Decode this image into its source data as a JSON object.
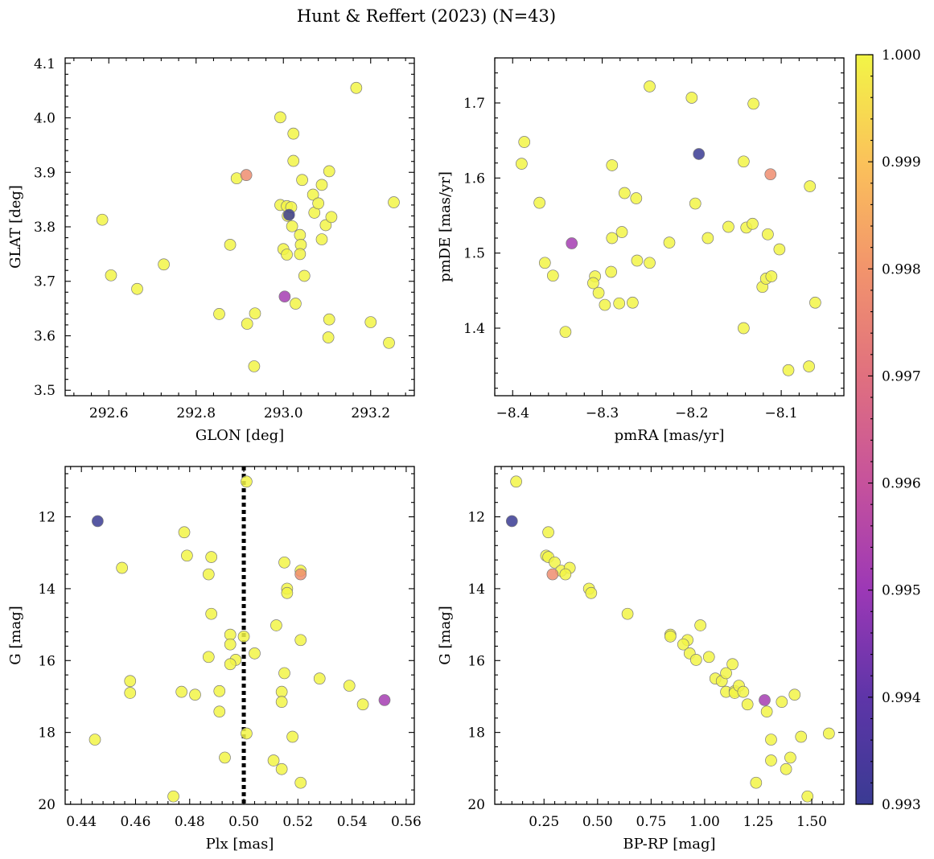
{
  "figure": {
    "title": "Hunt & Reffert (2023) (N=43)"
  },
  "colorbar": {
    "min": 0.993,
    "max": 1.0,
    "ticks": [
      "0.993",
      "0.994",
      "0.995",
      "0.996",
      "0.997",
      "0.998",
      "0.999",
      "1.000"
    ],
    "colormap": "plasma"
  },
  "chart_data": [
    {
      "type": "scatter",
      "panel": "top-left",
      "xlabel": "GLON [deg]",
      "ylabel": "GLAT [deg]",
      "xlim": [
        292.5,
        293.3
      ],
      "ylim": [
        3.49,
        4.11
      ],
      "xticks": [
        292.6,
        292.8,
        293.0,
        293.2
      ],
      "xtick_labels": [
        "292.6",
        "292.8",
        "293.0",
        "293.2"
      ],
      "yticks": [
        3.5,
        3.6,
        3.7,
        3.8,
        3.9,
        4.0,
        4.1
      ],
      "ytick_labels": [
        "3.5",
        "3.6",
        "3.7",
        "3.8",
        "3.9",
        "4.0",
        "4.1"
      ],
      "x_inverted": false,
      "y_inverted": false,
      "points": [
        {
          "x": 292.585,
          "y": 3.813,
          "c": 1.0
        },
        {
          "x": 292.605,
          "y": 3.711,
          "c": 1.0
        },
        {
          "x": 292.665,
          "y": 3.686,
          "c": 1.0
        },
        {
          "x": 292.726,
          "y": 3.731,
          "c": 1.0
        },
        {
          "x": 292.853,
          "y": 3.64,
          "c": 1.0
        },
        {
          "x": 292.878,
          "y": 3.767,
          "c": 1.0
        },
        {
          "x": 292.893,
          "y": 3.889,
          "c": 1.0
        },
        {
          "x": 292.917,
          "y": 3.622,
          "c": 1.0
        },
        {
          "x": 292.935,
          "y": 3.641,
          "c": 1.0
        },
        {
          "x": 292.933,
          "y": 3.544,
          "c": 1.0
        },
        {
          "x": 292.993,
          "y": 4.001,
          "c": 1.0
        },
        {
          "x": 292.993,
          "y": 3.84,
          "c": 1.0
        },
        {
          "x": 293.0,
          "y": 3.759,
          "c": 1.0
        },
        {
          "x": 293.008,
          "y": 3.838,
          "c": 1.0
        },
        {
          "x": 293.01,
          "y": 3.82,
          "c": 1.0
        },
        {
          "x": 293.008,
          "y": 3.749,
          "c": 1.0
        },
        {
          "x": 293.018,
          "y": 3.836,
          "c": 1.0
        },
        {
          "x": 293.023,
          "y": 3.971,
          "c": 1.0
        },
        {
          "x": 293.023,
          "y": 3.921,
          "c": 1.0
        },
        {
          "x": 293.02,
          "y": 3.801,
          "c": 1.0
        },
        {
          "x": 293.028,
          "y": 3.659,
          "c": 1.0
        },
        {
          "x": 293.038,
          "y": 3.785,
          "c": 1.0
        },
        {
          "x": 293.04,
          "y": 3.767,
          "c": 1.0
        },
        {
          "x": 293.038,
          "y": 3.75,
          "c": 1.0
        },
        {
          "x": 293.043,
          "y": 3.886,
          "c": 1.0
        },
        {
          "x": 293.048,
          "y": 3.71,
          "c": 1.0
        },
        {
          "x": 293.068,
          "y": 3.859,
          "c": 1.0
        },
        {
          "x": 293.071,
          "y": 3.826,
          "c": 1.0
        },
        {
          "x": 293.08,
          "y": 3.843,
          "c": 1.0
        },
        {
          "x": 293.088,
          "y": 3.877,
          "c": 1.0
        },
        {
          "x": 293.088,
          "y": 3.777,
          "c": 1.0
        },
        {
          "x": 293.097,
          "y": 3.803,
          "c": 1.0
        },
        {
          "x": 293.105,
          "y": 3.902,
          "c": 1.0
        },
        {
          "x": 293.105,
          "y": 3.63,
          "c": 1.0
        },
        {
          "x": 293.103,
          "y": 3.597,
          "c": 1.0
        },
        {
          "x": 293.11,
          "y": 3.818,
          "c": 1.0
        },
        {
          "x": 293.167,
          "y": 4.055,
          "c": 1.0
        },
        {
          "x": 293.2,
          "y": 3.625,
          "c": 1.0
        },
        {
          "x": 293.242,
          "y": 3.587,
          "c": 1.0
        },
        {
          "x": 293.253,
          "y": 3.845,
          "c": 1.0
        },
        {
          "x": 292.915,
          "y": 3.895,
          "c": 0.9978
        },
        {
          "x": 293.003,
          "y": 3.672,
          "c": 0.9952
        },
        {
          "x": 293.013,
          "y": 3.822,
          "c": 0.993
        }
      ]
    },
    {
      "type": "scatter",
      "panel": "top-right",
      "xlabel": "pmRA [mas/yr]",
      "ylabel": "pmDE [mas/yr]",
      "xlim": [
        -8.42,
        -8.03
      ],
      "ylim": [
        1.31,
        1.76
      ],
      "xticks": [
        -8.4,
        -8.3,
        -8.2,
        -8.1
      ],
      "xtick_labels": [
        "−8.4",
        "−8.3",
        "−8.2",
        "−8.1"
      ],
      "yticks": [
        1.4,
        1.5,
        1.6,
        1.7
      ],
      "ytick_labels": [
        "1.4",
        "1.5",
        "1.6",
        "1.7"
      ],
      "x_inverted": false,
      "y_inverted": false,
      "points": [
        {
          "x": -8.387,
          "y": 1.648,
          "c": 1.0
        },
        {
          "x": -8.39,
          "y": 1.619,
          "c": 1.0
        },
        {
          "x": -8.37,
          "y": 1.567,
          "c": 1.0
        },
        {
          "x": -8.364,
          "y": 1.487,
          "c": 1.0
        },
        {
          "x": -8.355,
          "y": 1.47,
          "c": 1.0
        },
        {
          "x": -8.341,
          "y": 1.395,
          "c": 1.0
        },
        {
          "x": -8.308,
          "y": 1.469,
          "c": 1.0
        },
        {
          "x": -8.31,
          "y": 1.46,
          "c": 1.0
        },
        {
          "x": -8.304,
          "y": 1.447,
          "c": 1.0
        },
        {
          "x": -8.297,
          "y": 1.431,
          "c": 1.0
        },
        {
          "x": -8.289,
          "y": 1.617,
          "c": 1.0
        },
        {
          "x": -8.289,
          "y": 1.52,
          "c": 1.0
        },
        {
          "x": -8.29,
          "y": 1.475,
          "c": 1.0
        },
        {
          "x": -8.281,
          "y": 1.433,
          "c": 1.0
        },
        {
          "x": -8.278,
          "y": 1.528,
          "c": 1.0
        },
        {
          "x": -8.275,
          "y": 1.58,
          "c": 1.0
        },
        {
          "x": -8.266,
          "y": 1.434,
          "c": 1.0
        },
        {
          "x": -8.262,
          "y": 1.573,
          "c": 1.0
        },
        {
          "x": -8.261,
          "y": 1.49,
          "c": 1.0
        },
        {
          "x": -8.247,
          "y": 1.722,
          "c": 1.0
        },
        {
          "x": -8.247,
          "y": 1.487,
          "c": 1.0
        },
        {
          "x": -8.225,
          "y": 1.514,
          "c": 1.0
        },
        {
          "x": -8.2,
          "y": 1.707,
          "c": 1.0
        },
        {
          "x": -8.196,
          "y": 1.566,
          "c": 1.0
        },
        {
          "x": -8.182,
          "y": 1.52,
          "c": 1.0
        },
        {
          "x": -8.159,
          "y": 1.535,
          "c": 1.0
        },
        {
          "x": -8.142,
          "y": 1.622,
          "c": 1.0
        },
        {
          "x": -8.142,
          "y": 1.4,
          "c": 1.0
        },
        {
          "x": -8.139,
          "y": 1.534,
          "c": 1.0
        },
        {
          "x": -8.131,
          "y": 1.699,
          "c": 1.0
        },
        {
          "x": -8.132,
          "y": 1.539,
          "c": 1.0
        },
        {
          "x": -8.121,
          "y": 1.455,
          "c": 1.0
        },
        {
          "x": -8.117,
          "y": 1.466,
          "c": 1.0
        },
        {
          "x": -8.115,
          "y": 1.525,
          "c": 1.0
        },
        {
          "x": -8.111,
          "y": 1.469,
          "c": 1.0
        },
        {
          "x": -8.102,
          "y": 1.505,
          "c": 1.0
        },
        {
          "x": -8.092,
          "y": 1.344,
          "c": 1.0
        },
        {
          "x": -8.069,
          "y": 1.349,
          "c": 1.0
        },
        {
          "x": -8.068,
          "y": 1.589,
          "c": 1.0
        },
        {
          "x": -8.062,
          "y": 1.434,
          "c": 1.0
        },
        {
          "x": -8.112,
          "y": 1.605,
          "c": 0.9978
        },
        {
          "x": -8.334,
          "y": 1.513,
          "c": 0.9952
        },
        {
          "x": -8.192,
          "y": 1.632,
          "c": 0.993
        }
      ]
    },
    {
      "type": "scatter",
      "panel": "bottom-left",
      "xlabel": "Plx [mas]",
      "ylabel": "G [mag]",
      "xlim": [
        0.434,
        0.563
      ],
      "ylim": [
        20.0,
        10.6
      ],
      "xticks": [
        0.44,
        0.46,
        0.48,
        0.5,
        0.52,
        0.54,
        0.56
      ],
      "xtick_labels": [
        "0.44",
        "0.46",
        "0.48",
        "0.50",
        "0.52",
        "0.54",
        "0.56"
      ],
      "yticks": [
        12,
        14,
        16,
        18,
        20
      ],
      "ytick_labels": [
        "12",
        "14",
        "16",
        "18",
        "20"
      ],
      "x_inverted": false,
      "y_inverted": true,
      "vline": {
        "x": 0.5,
        "style": "dotted",
        "color": "#000000"
      },
      "points": [
        {
          "x": 0.501,
          "y": 11.02,
          "c": 1.0
        },
        {
          "x": 0.478,
          "y": 12.43,
          "c": 1.0
        },
        {
          "x": 0.479,
          "y": 13.08,
          "c": 1.0
        },
        {
          "x": 0.488,
          "y": 13.12,
          "c": 1.0
        },
        {
          "x": 0.455,
          "y": 13.42,
          "c": 1.0
        },
        {
          "x": 0.487,
          "y": 13.6,
          "c": 1.0
        },
        {
          "x": 0.515,
          "y": 13.27,
          "c": 1.0
        },
        {
          "x": 0.521,
          "y": 13.5,
          "c": 1.0
        },
        {
          "x": 0.516,
          "y": 14.0,
          "c": 1.0
        },
        {
          "x": 0.516,
          "y": 14.12,
          "c": 1.0
        },
        {
          "x": 0.488,
          "y": 14.7,
          "c": 1.0
        },
        {
          "x": 0.495,
          "y": 15.28,
          "c": 1.0
        },
        {
          "x": 0.5,
          "y": 15.33,
          "c": 1.0
        },
        {
          "x": 0.495,
          "y": 15.55,
          "c": 1.0
        },
        {
          "x": 0.512,
          "y": 15.02,
          "c": 1.0
        },
        {
          "x": 0.521,
          "y": 15.43,
          "c": 1.0
        },
        {
          "x": 0.504,
          "y": 15.8,
          "c": 1.0
        },
        {
          "x": 0.487,
          "y": 15.9,
          "c": 1.0
        },
        {
          "x": 0.497,
          "y": 15.98,
          "c": 1.0
        },
        {
          "x": 0.495,
          "y": 16.1,
          "c": 1.0
        },
        {
          "x": 0.515,
          "y": 16.35,
          "c": 1.0
        },
        {
          "x": 0.458,
          "y": 16.57,
          "c": 1.0
        },
        {
          "x": 0.458,
          "y": 16.9,
          "c": 1.0
        },
        {
          "x": 0.477,
          "y": 16.87,
          "c": 1.0
        },
        {
          "x": 0.482,
          "y": 16.95,
          "c": 1.0
        },
        {
          "x": 0.491,
          "y": 16.85,
          "c": 1.0
        },
        {
          "x": 0.514,
          "y": 16.87,
          "c": 1.0
        },
        {
          "x": 0.514,
          "y": 17.15,
          "c": 1.0
        },
        {
          "x": 0.528,
          "y": 16.5,
          "c": 1.0
        },
        {
          "x": 0.539,
          "y": 16.7,
          "c": 1.0
        },
        {
          "x": 0.544,
          "y": 17.22,
          "c": 1.0
        },
        {
          "x": 0.491,
          "y": 17.42,
          "c": 1.0
        },
        {
          "x": 0.445,
          "y": 18.2,
          "c": 1.0
        },
        {
          "x": 0.501,
          "y": 18.03,
          "c": 1.0
        },
        {
          "x": 0.518,
          "y": 18.12,
          "c": 1.0
        },
        {
          "x": 0.493,
          "y": 18.7,
          "c": 1.0
        },
        {
          "x": 0.511,
          "y": 18.78,
          "c": 1.0
        },
        {
          "x": 0.514,
          "y": 19.02,
          "c": 1.0
        },
        {
          "x": 0.521,
          "y": 19.4,
          "c": 1.0
        },
        {
          "x": 0.474,
          "y": 19.78,
          "c": 1.0
        },
        {
          "x": 0.521,
          "y": 13.6,
          "c": 0.9978
        },
        {
          "x": 0.552,
          "y": 17.1,
          "c": 0.9952
        },
        {
          "x": 0.446,
          "y": 12.12,
          "c": 0.993
        }
      ]
    },
    {
      "type": "scatter",
      "panel": "bottom-right",
      "xlabel": "BP-RP [mag]",
      "ylabel": "G [mag]",
      "xlim": [
        0.02,
        1.65
      ],
      "ylim": [
        20.0,
        10.6
      ],
      "xticks": [
        0.25,
        0.5,
        0.75,
        1.0,
        1.25,
        1.5
      ],
      "xtick_labels": [
        "0.25",
        "0.50",
        "0.75",
        "1.00",
        "1.25",
        "1.50"
      ],
      "yticks": [
        12,
        14,
        16,
        18,
        20
      ],
      "ytick_labels": [
        "12",
        "14",
        "16",
        "18",
        "20"
      ],
      "x_inverted": false,
      "y_inverted": true,
      "points": [
        {
          "x": 0.12,
          "y": 11.02,
          "c": 1.0
        },
        {
          "x": 0.27,
          "y": 12.43,
          "c": 1.0
        },
        {
          "x": 0.26,
          "y": 13.08,
          "c": 1.0
        },
        {
          "x": 0.27,
          "y": 13.12,
          "c": 1.0
        },
        {
          "x": 0.3,
          "y": 13.27,
          "c": 1.0
        },
        {
          "x": 0.33,
          "y": 13.5,
          "c": 1.0
        },
        {
          "x": 0.37,
          "y": 13.42,
          "c": 1.0
        },
        {
          "x": 0.35,
          "y": 13.6,
          "c": 1.0
        },
        {
          "x": 0.46,
          "y": 14.0,
          "c": 1.0
        },
        {
          "x": 0.47,
          "y": 14.12,
          "c": 1.0
        },
        {
          "x": 0.64,
          "y": 14.7,
          "c": 1.0
        },
        {
          "x": 0.84,
          "y": 15.28,
          "c": 1.0
        },
        {
          "x": 0.84,
          "y": 15.33,
          "c": 1.0
        },
        {
          "x": 0.92,
          "y": 15.43,
          "c": 1.0
        },
        {
          "x": 0.9,
          "y": 15.55,
          "c": 1.0
        },
        {
          "x": 0.98,
          "y": 15.02,
          "c": 1.0
        },
        {
          "x": 0.93,
          "y": 15.8,
          "c": 1.0
        },
        {
          "x": 0.96,
          "y": 15.98,
          "c": 1.0
        },
        {
          "x": 1.02,
          "y": 15.9,
          "c": 1.0
        },
        {
          "x": 1.05,
          "y": 16.5,
          "c": 1.0
        },
        {
          "x": 1.08,
          "y": 16.57,
          "c": 1.0
        },
        {
          "x": 1.1,
          "y": 16.35,
          "c": 1.0
        },
        {
          "x": 1.13,
          "y": 16.1,
          "c": 1.0
        },
        {
          "x": 1.1,
          "y": 16.87,
          "c": 1.0
        },
        {
          "x": 1.14,
          "y": 16.85,
          "c": 1.0
        },
        {
          "x": 1.14,
          "y": 16.9,
          "c": 1.0
        },
        {
          "x": 1.16,
          "y": 16.7,
          "c": 1.0
        },
        {
          "x": 1.18,
          "y": 16.87,
          "c": 1.0
        },
        {
          "x": 1.2,
          "y": 17.22,
          "c": 1.0
        },
        {
          "x": 1.29,
          "y": 17.42,
          "c": 1.0
        },
        {
          "x": 1.36,
          "y": 17.15,
          "c": 1.0
        },
        {
          "x": 1.42,
          "y": 16.95,
          "c": 1.0
        },
        {
          "x": 1.31,
          "y": 18.2,
          "c": 1.0
        },
        {
          "x": 1.45,
          "y": 18.12,
          "c": 1.0
        },
        {
          "x": 1.58,
          "y": 18.03,
          "c": 1.0
        },
        {
          "x": 1.31,
          "y": 18.78,
          "c": 1.0
        },
        {
          "x": 1.4,
          "y": 18.7,
          "c": 1.0
        },
        {
          "x": 1.38,
          "y": 19.02,
          "c": 1.0
        },
        {
          "x": 1.24,
          "y": 19.4,
          "c": 1.0
        },
        {
          "x": 1.48,
          "y": 19.78,
          "c": 1.0
        },
        {
          "x": 0.29,
          "y": 13.6,
          "c": 0.9978
        },
        {
          "x": 1.28,
          "y": 17.1,
          "c": 0.9952
        },
        {
          "x": 0.1,
          "y": 12.12,
          "c": 0.993
        }
      ]
    }
  ]
}
